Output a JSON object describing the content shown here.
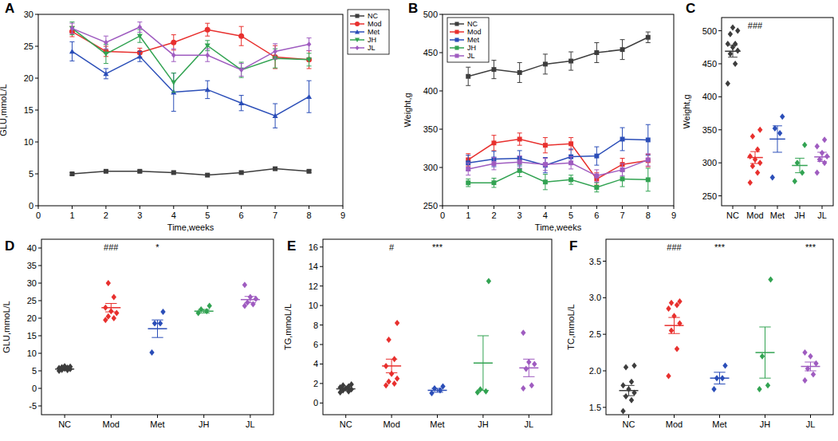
{
  "chart_data": [
    {
      "type": "line",
      "title": "A",
      "x_label": "Time,weeks",
      "y_label": "GLU,mmoL/L",
      "x": [
        1,
        2,
        3,
        4,
        5,
        6,
        7,
        8
      ],
      "xlim": [
        0,
        9
      ],
      "xticks": [
        0,
        1,
        2,
        3,
        4,
        5,
        6,
        7,
        8,
        9
      ],
      "ylim": [
        0,
        30
      ],
      "yticks": [
        0,
        5,
        10,
        15,
        20,
        25,
        30
      ],
      "legend": "right",
      "series": [
        {
          "name": "NC",
          "color": "#3d3d3d",
          "marker": "square",
          "values": [
            5.0,
            5.4,
            5.4,
            5.2,
            4.8,
            5.2,
            5.8,
            5.4
          ],
          "errors": [
            0.2,
            0.2,
            0.2,
            0.2,
            0.2,
            0.2,
            0.2,
            0.2
          ]
        },
        {
          "name": "Mod",
          "color": "#e8302e",
          "marker": "circle",
          "values": [
            27.3,
            24.2,
            24.0,
            25.6,
            27.6,
            26.6,
            23.3,
            22.9
          ],
          "errors": [
            0.8,
            0.8,
            0.7,
            1.2,
            1.0,
            1.5,
            1.8,
            1.4
          ]
        },
        {
          "name": "Met",
          "color": "#2b4eb8",
          "marker": "triangle",
          "values": [
            24.2,
            20.7,
            23.4,
            17.8,
            18.2,
            16.1,
            14.1,
            17.1
          ],
          "errors": [
            1.5,
            0.8,
            0.8,
            3.0,
            1.4,
            1.2,
            1.9,
            2.5
          ]
        },
        {
          "name": "JH",
          "color": "#32a352",
          "marker": "triangle-down",
          "values": [
            27.8,
            23.8,
            26.6,
            19.3,
            25.1,
            21.3,
            23.1,
            22.9
          ],
          "errors": [
            1.0,
            1.5,
            1.0,
            1.5,
            0.8,
            1.2,
            1.5,
            1.0
          ]
        },
        {
          "name": "JL",
          "color": "#9f5cc0",
          "marker": "diamond",
          "values": [
            27.8,
            25.6,
            28.0,
            23.6,
            23.6,
            21.3,
            24.2,
            25.3
          ],
          "errors": [
            0.8,
            1.0,
            0.8,
            1.0,
            1.0,
            1.0,
            1.2,
            1.0
          ]
        }
      ]
    },
    {
      "type": "line",
      "title": "B",
      "x_label": "Time,weeks",
      "y_label": "Weight,g",
      "x": [
        1,
        2,
        3,
        4,
        5,
        6,
        7,
        8
      ],
      "xlim": [
        0,
        9
      ],
      "xticks": [
        0,
        1,
        2,
        3,
        4,
        5,
        6,
        7,
        8,
        9
      ],
      "ylim": [
        250,
        500
      ],
      "yticks": [
        250,
        300,
        350,
        400,
        450,
        500
      ],
      "legend": "upper left",
      "series": [
        {
          "name": "NC",
          "color": "#3d3d3d",
          "marker": "square",
          "values": [
            419,
            428,
            424,
            435,
            439,
            450,
            454,
            470
          ],
          "errors": [
            12,
            12,
            13,
            13,
            12,
            13,
            13,
            7
          ]
        },
        {
          "name": "Mod",
          "color": "#e8302e",
          "marker": "square",
          "values": [
            310,
            332,
            337,
            329,
            331,
            285,
            304,
            309
          ],
          "errors": [
            8,
            10,
            8,
            10,
            8,
            8,
            8,
            8
          ]
        },
        {
          "name": "Met",
          "color": "#2b4eb8",
          "marker": "square",
          "values": [
            306,
            311,
            312,
            303,
            314,
            315,
            337,
            336
          ],
          "errors": [
            10,
            10,
            10,
            10,
            10,
            12,
            15,
            20
          ]
        },
        {
          "name": "JH",
          "color": "#32a352",
          "marker": "square",
          "values": [
            280,
            280,
            296,
            281,
            284,
            274,
            285,
            284
          ],
          "errors": [
            5,
            6,
            8,
            10,
            6,
            6,
            10,
            15
          ]
        },
        {
          "name": "JL",
          "color": "#9f5cc0",
          "marker": "square",
          "values": [
            298,
            305,
            307,
            304,
            306,
            289,
            297,
            310
          ],
          "errors": [
            8,
            8,
            8,
            8,
            8,
            8,
            8,
            8
          ]
        }
      ]
    },
    {
      "type": "scatter",
      "title": "C",
      "y_label": "Weight,g",
      "marker": "diamond",
      "categories": [
        "NC",
        "Mod",
        "Met",
        "JH",
        "JL"
      ],
      "colors": [
        "#3d3d3d",
        "#e8302e",
        "#2b4eb8",
        "#32a352",
        "#9f5cc0"
      ],
      "values": [
        [
          420,
          450,
          465,
          470,
          475,
          480,
          480,
          495,
          500,
          505
        ],
        [
          270,
          285,
          295,
          300,
          305,
          310,
          320,
          340,
          350
        ],
        [
          278,
          345,
          352,
          370
        ],
        [
          272,
          285,
          300,
          327
        ],
        [
          285,
          300,
          305,
          310,
          315,
          325,
          335
        ]
      ],
      "mean": [
        469,
        308,
        336,
        296,
        309
      ],
      "error": [
        9,
        9,
        20,
        11,
        7
      ],
      "ylim": [
        235,
        520
      ],
      "yticks": [
        250,
        300,
        350,
        400,
        450,
        500
      ],
      "annotations": [
        {
          "text": "###",
          "category": "Mod"
        }
      ]
    },
    {
      "type": "scatter",
      "title": "D",
      "y_label": "GLU,mmoL/L",
      "marker": "diamond",
      "categories": [
        "NC",
        "Mod",
        "Met",
        "JH",
        "JL"
      ],
      "colors": [
        "#3d3d3d",
        "#e8302e",
        "#2b4eb8",
        "#32a352",
        "#9f5cc0"
      ],
      "values": [
        [
          5.0,
          5.2,
          5.3,
          5.5,
          5.6,
          5.8,
          5.9,
          6.0,
          6.2,
          6.3
        ],
        [
          19.5,
          20.0,
          20.5,
          21.5,
          22.0,
          23.0,
          26.0,
          30.0
        ],
        [
          10.2,
          18.5,
          18.5,
          21.8
        ],
        [
          21.5,
          22.0,
          22.5,
          23.5
        ],
        [
          23.5,
          24.0,
          24.5,
          25.5,
          26.0,
          29.5
        ]
      ],
      "mean": [
        5.5,
        23.0,
        17.0,
        22.0,
        25.3
      ],
      "error": [
        0.2,
        1.2,
        2.5,
        0.5,
        0.9
      ],
      "ylim": [
        -7.5,
        42.5
      ],
      "yticks": [
        -5,
        0,
        5,
        10,
        15,
        20,
        25,
        30,
        35,
        40
      ],
      "annotations": [
        {
          "text": "###",
          "category": "Mod"
        },
        {
          "text": "*",
          "category": "Met"
        }
      ]
    },
    {
      "type": "scatter",
      "title": "E",
      "y_label": "TG,mmoL/L",
      "marker": "diamond",
      "categories": [
        "NC",
        "Mod",
        "Met",
        "JH",
        "JL"
      ],
      "colors": [
        "#3d3d3d",
        "#e8302e",
        "#2b4eb8",
        "#32a352",
        "#9f5cc0"
      ],
      "values": [
        [
          1.1,
          1.2,
          1.3,
          1.4,
          1.5,
          1.6,
          1.7,
          1.8,
          1.9
        ],
        [
          1.8,
          2.0,
          2.2,
          2.5,
          3.0,
          3.8,
          4.5,
          6.5,
          8.2
        ],
        [
          1.0,
          1.3,
          1.5,
          1.7
        ],
        [
          1.1,
          1.2,
          1.4,
          12.5
        ],
        [
          1.5,
          1.8,
          3.5,
          4.0,
          4.2,
          7.2
        ]
      ],
      "mean": [
        1.45,
        3.8,
        1.3,
        4.1,
        3.6
      ],
      "error": [
        0.1,
        0.7,
        0.2,
        2.8,
        0.9
      ],
      "ylim": [
        -1.2,
        16.8
      ],
      "yticks": [
        0,
        2,
        4,
        6,
        8,
        10,
        12,
        14,
        16
      ],
      "annotations": [
        {
          "text": "#",
          "category": "Mod"
        },
        {
          "text": "***",
          "category": "Met"
        }
      ]
    },
    {
      "type": "scatter",
      "title": "F",
      "y_label": "TC,mmoL/L",
      "marker": "diamond",
      "categories": [
        "NC",
        "Mod",
        "Met",
        "JH",
        "JL"
      ],
      "colors": [
        "#3d3d3d",
        "#e8302e",
        "#2b4eb8",
        "#32a352",
        "#9f5cc0"
      ],
      "values": [
        [
          1.45,
          1.6,
          1.65,
          1.7,
          1.75,
          1.8,
          1.85,
          2.05,
          2.07
        ],
        [
          1.93,
          2.3,
          2.55,
          2.65,
          2.75,
          2.85,
          2.9,
          2.93,
          2.95
        ],
        [
          1.75,
          1.9,
          1.9,
          2.07
        ],
        [
          1.75,
          1.8,
          2.2,
          3.25
        ],
        [
          1.87,
          1.95,
          2.03,
          2.1,
          2.2,
          2.25
        ]
      ],
      "mean": [
        1.73,
        2.62,
        1.9,
        2.25,
        2.06
      ],
      "error": [
        0.07,
        0.11,
        0.08,
        0.35,
        0.06
      ],
      "ylim": [
        1.4,
        3.8
      ],
      "yticks": [
        1.5,
        {
          "value": 2,
          "label": "2.0"
        },
        2.5,
        {
          "value": 3,
          "label": "3.0"
        },
        3.5
      ],
      "annotations": [
        {
          "text": "###",
          "category": "Mod"
        },
        {
          "text": "***",
          "category": "Met"
        },
        {
          "text": "***",
          "category": "JL"
        }
      ]
    }
  ]
}
